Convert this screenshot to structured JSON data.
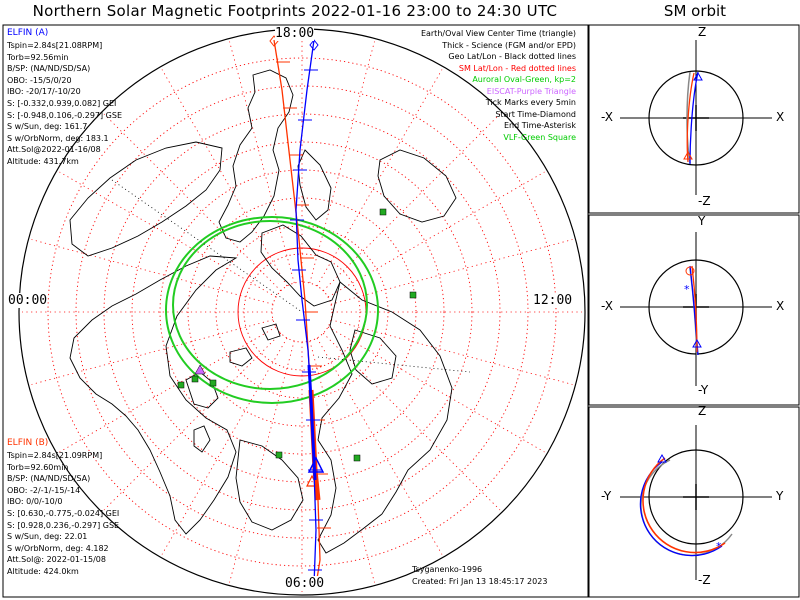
{
  "title": "Northern Solar Magnetic Footprints 2022-01-16 23:00 to 24:30 UTC",
  "orbit_title": "SM orbit",
  "mlt_labels": {
    "top": "18:00",
    "left": "00:00",
    "right": "12:00",
    "bottom": "06:00"
  },
  "elfin_a": {
    "name": "ELFIN (A)",
    "color": "#0000ff",
    "lines": [
      "Tspin=2.84s[21.08RPM]",
      "Torb=92.56min",
      "B/SP: (NA/ND/SD/SA)",
      "OBO: -15/5/0/20",
      "IBO: -20/17/-10/20",
      "S: [-0.332,0.939,0.082] GEI",
      "S: [-0.948,0.106,-0.297] GSE",
      "S w/Sun, deg: 161.7",
      "S w/OrbNorm, deg: 183.1",
      "Att.Sol@2022-01-16/08",
      "Altitude: 431.7km"
    ]
  },
  "elfin_b": {
    "name": "ELFIN (B)",
    "color": "#ff3300",
    "lines": [
      "Tspin=2.84s[21.09RPM]",
      "Torb=92.60min",
      "B/SP: (NA/ND/SD/SA)",
      "OBO: -2/-1/-15/-14",
      "IBO: 0/0/-10/0",
      "S: [0.630,-0.775,-0.024] GEI",
      "S: [0.928,0.236,-0.297] GSE",
      "S w/Sun, deg: 22.01",
      "S w/OrbNorm, deg: 4.182",
      "Att.Sol@: 2022-01-15/08",
      "Altitude: 424.0km"
    ]
  },
  "legend": [
    {
      "text": "Earth/Oval View Center Time (triangle)",
      "color": "#000000"
    },
    {
      "text": "Thick - Science (FGM and/or EPD)",
      "color": "#000000"
    },
    {
      "text": "Geo Lat/Lon - Black dotted lines",
      "color": "#000000"
    },
    {
      "text": "SM Lat/Lon - Red dotted lines",
      "color": "#ff0000"
    },
    {
      "text": "Auroral Oval-Green, kp=2",
      "color": "#00cc00"
    },
    {
      "text": "EISCAT-Purple Triangle",
      "color": "#cc66ff"
    },
    {
      "text": "Tick Marks every 5min",
      "color": "#000000"
    },
    {
      "text": "Start Time-Diamond",
      "color": "#000000"
    },
    {
      "text": "End Time-Asterisk",
      "color": "#000000"
    },
    {
      "text": "VLF-Green Square",
      "color": "#00cc00"
    }
  ],
  "footer": {
    "credit": "Tsyganenko-1996",
    "created": "Created: Fri Jan 13 18:45:17 2023"
  },
  "orbit_panels": [
    {
      "name": "xz",
      "top": "Z",
      "bottom": "-Z",
      "left": "-X",
      "right": "X",
      "inner_left": "",
      "inner_right": ""
    },
    {
      "name": "xy",
      "top": "Y",
      "bottom": "-Y",
      "left": "-X",
      "right": "X",
      "inner_left": "",
      "inner_right": ""
    },
    {
      "name": "yz",
      "top": "Z",
      "bottom": "-Z",
      "left": "-Y",
      "right": "Y",
      "inner_left": "",
      "inner_right": ""
    }
  ],
  "colors": {
    "elfin_a": "#0000ff",
    "elfin_b": "#ff3300",
    "sm_grid": "#ff0000",
    "auroral_oval": "#22cc22",
    "vlf_square": "#22aa22",
    "eiscat": "#cc66ff",
    "coast": "#000000"
  }
}
